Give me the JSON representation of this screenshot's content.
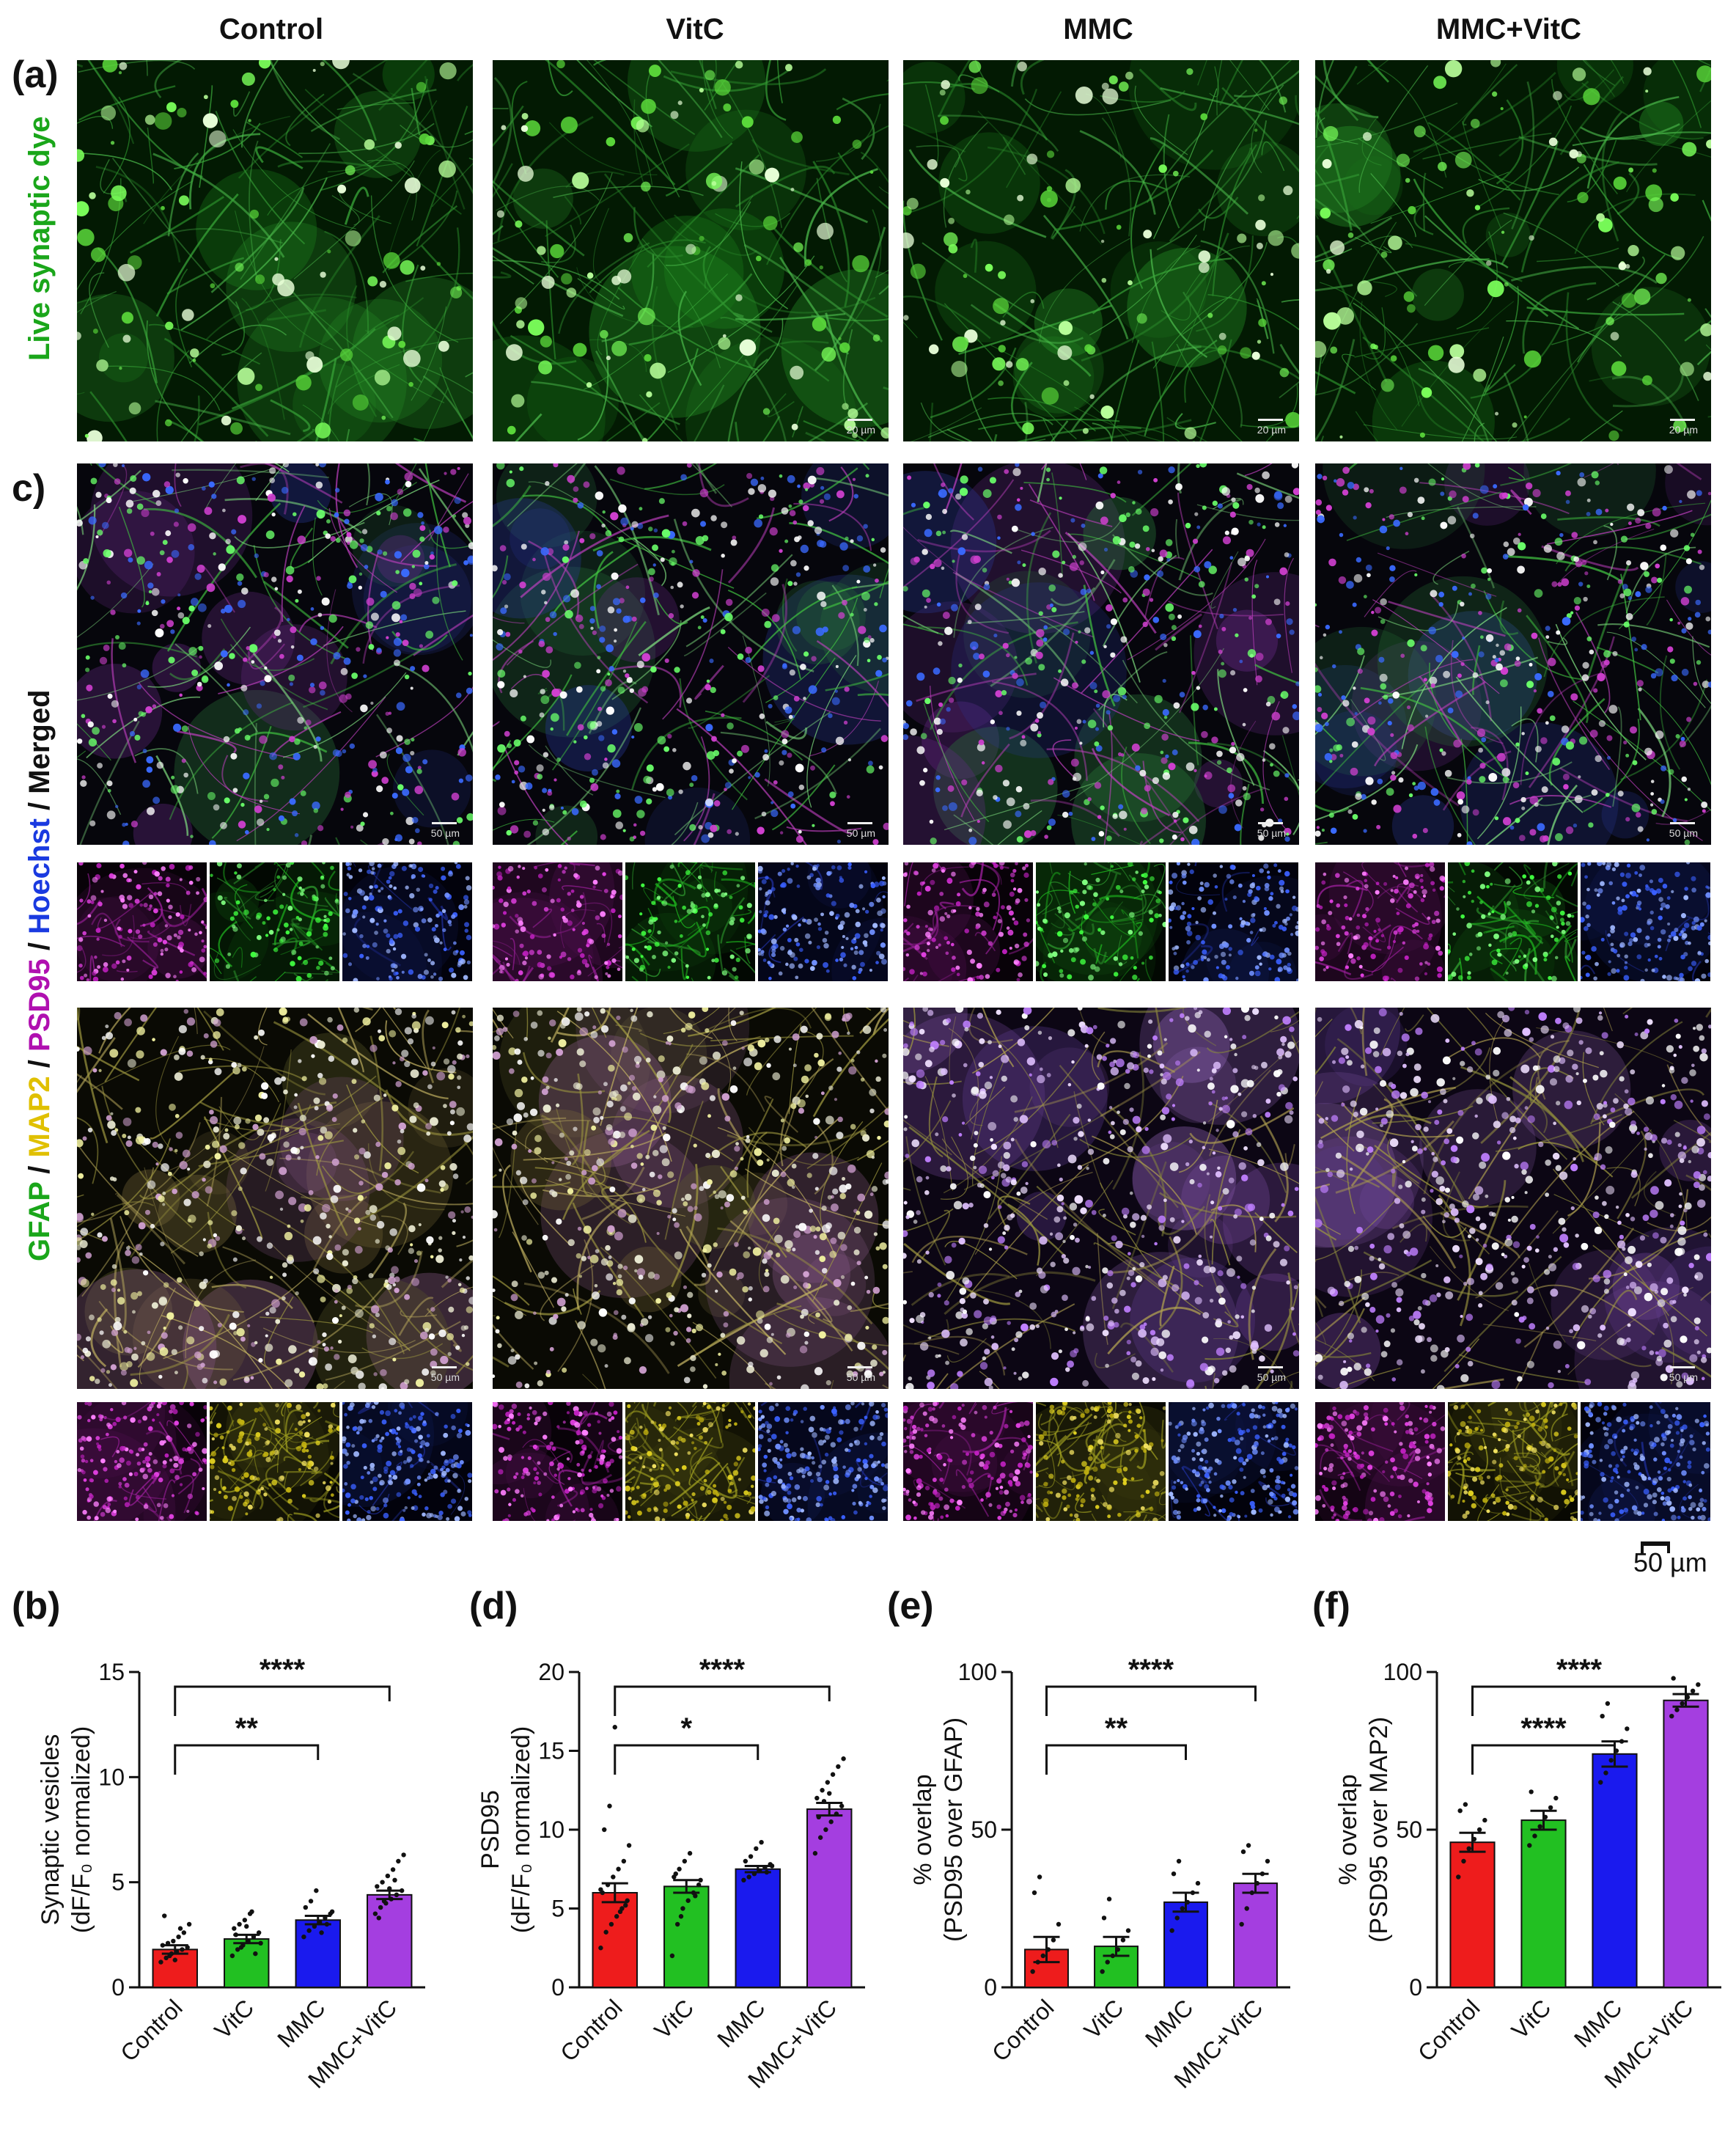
{
  "columns": [
    "Control",
    "VitC",
    "MMC",
    "MMC+VitC"
  ],
  "panel_labels": {
    "a": "(a)",
    "c": "c)",
    "b": "(b)",
    "d": "(d)",
    "e": "(e)",
    "f": "(f)"
  },
  "row_labels": {
    "live": "Live synaptic dye",
    "merged": [
      {
        "text": "GFAP",
        "color": "#1aa61a"
      },
      {
        "text": " / ",
        "color": "#111111"
      },
      {
        "text": "MAP2",
        "color": "#e0c000"
      },
      {
        "text": " / ",
        "color": "#111111"
      },
      {
        "text": "PSD95",
        "color": "#b010b0"
      },
      {
        "text": " / ",
        "color": "#111111"
      },
      {
        "text": "Hoechst",
        "color": "#1a3ae0"
      },
      {
        "text": " / ",
        "color": "#111111"
      },
      {
        "text": "Merged",
        "color": "#111111"
      }
    ]
  },
  "scale_labels": {
    "live": "20 µm",
    "merged": "50 µm",
    "global": "50 µm"
  },
  "colors": {
    "Control": "#ee1c1c",
    "VitC": "#22c022",
    "MMC": "#1a1aee",
    "MMC+VitC": "#a43ee0"
  },
  "chart_data": [
    {
      "id": "b",
      "type": "bar",
      "categories": [
        "Control",
        "VitC",
        "MMC",
        "MMC+VitC"
      ],
      "values": [
        1.8,
        2.3,
        3.2,
        4.4
      ],
      "errors": [
        0.2,
        0.2,
        0.2,
        0.2
      ],
      "ylabel": [
        "Synaptic vesicles",
        "(dF/F₀ normalized)"
      ],
      "ylim": [
        0,
        15
      ],
      "yticks": [
        0,
        5,
        10,
        15
      ],
      "significance": [
        {
          "from": 0,
          "to": 2,
          "label": "**"
        },
        {
          "from": 0,
          "to": 3,
          "label": "****"
        }
      ],
      "points": [
        [
          1.2,
          1.4,
          1.6,
          1.7,
          1.8,
          1.9,
          2.0,
          2.1,
          2.2,
          2.4,
          2.6,
          3.0,
          3.4,
          1.5,
          1.3,
          2.8
        ],
        [
          1.5,
          1.8,
          2.0,
          2.2,
          2.4,
          2.6,
          2.8,
          3.0,
          3.2,
          3.5,
          1.6,
          2.1,
          2.5,
          1.9,
          2.9,
          3.6
        ],
        [
          2.4,
          2.7,
          2.9,
          3.1,
          3.3,
          3.5,
          3.8,
          4.1,
          4.6,
          2.6,
          3.0,
          3.6
        ],
        [
          3.5,
          3.8,
          4.0,
          4.2,
          4.4,
          4.6,
          4.8,
          5.0,
          5.3,
          5.6,
          6.0,
          6.3,
          3.3,
          4.1,
          4.7,
          5.1
        ]
      ]
    },
    {
      "id": "d",
      "type": "bar",
      "categories": [
        "Control",
        "VitC",
        "MMC",
        "MMC+VitC"
      ],
      "values": [
        6.0,
        6.4,
        7.5,
        11.3
      ],
      "errors": [
        0.6,
        0.4,
        0.2,
        0.4
      ],
      "ylabel": [
        "PSD95",
        "(dF/F₀ normalized)"
      ],
      "ylim": [
        0,
        20
      ],
      "yticks": [
        0,
        5,
        10,
        15,
        20
      ],
      "significance": [
        {
          "from": 0,
          "to": 2,
          "label": "*"
        },
        {
          "from": 0,
          "to": 3,
          "label": "****"
        }
      ],
      "points": [
        [
          2.5,
          3.5,
          4.0,
          4.5,
          5.0,
          5.5,
          6.0,
          6.5,
          7.0,
          7.5,
          8.0,
          9.0,
          10.0,
          11.5,
          16.5,
          4.8,
          5.2,
          6.2
        ],
        [
          2.0,
          4.0,
          5.0,
          5.5,
          6.0,
          6.5,
          7.0,
          7.5,
          8.0,
          8.5,
          5.8,
          6.8,
          7.2,
          4.5
        ],
        [
          6.8,
          7.0,
          7.2,
          7.4,
          7.6,
          7.8,
          8.0,
          8.3,
          8.8,
          9.2,
          7.3,
          7.7
        ],
        [
          8.5,
          9.5,
          10.0,
          10.5,
          11.0,
          11.5,
          12.0,
          12.5,
          13.0,
          13.5,
          14.0,
          14.5,
          10.8,
          11.8,
          12.3
        ]
      ]
    },
    {
      "id": "e",
      "type": "bar",
      "categories": [
        "Control",
        "VitC",
        "MMC",
        "MMC+VitC"
      ],
      "values": [
        12,
        13,
        27,
        33
      ],
      "errors": [
        4,
        3,
        3,
        3
      ],
      "ylabel": [
        "% overlap",
        "(PSD95 over GFAP)"
      ],
      "ylim": [
        0,
        100
      ],
      "yticks": [
        0,
        50,
        100
      ],
      "significance": [
        {
          "from": 0,
          "to": 2,
          "label": "**"
        },
        {
          "from": 0,
          "to": 3,
          "label": "****"
        }
      ],
      "points": [
        [
          5,
          8,
          10,
          12,
          15,
          20,
          30,
          35
        ],
        [
          5,
          8,
          10,
          12,
          15,
          18,
          22,
          28
        ],
        [
          18,
          22,
          25,
          27,
          30,
          33,
          36,
          40
        ],
        [
          20,
          25,
          30,
          33,
          36,
          40,
          43,
          45
        ]
      ]
    },
    {
      "id": "f",
      "type": "bar",
      "categories": [
        "Control",
        "VitC",
        "MMC",
        "MMC+VitC"
      ],
      "values": [
        46,
        53,
        74,
        91
      ],
      "errors": [
        3,
        3,
        4,
        2
      ],
      "ylabel": [
        "% overlap",
        "(PSD95 over MAP2)"
      ],
      "ylim": [
        0,
        100
      ],
      "yticks": [
        0,
        50,
        100
      ],
      "significance": [
        {
          "from": 0,
          "to": 2,
          "label": "****"
        },
        {
          "from": 0,
          "to": 3,
          "label": "****"
        }
      ],
      "points": [
        [
          35,
          40,
          44,
          47,
          50,
          53,
          56,
          58
        ],
        [
          45,
          48,
          51,
          54,
          57,
          60,
          62
        ],
        [
          65,
          68,
          72,
          75,
          78,
          82,
          86,
          90
        ],
        [
          86,
          88,
          90,
          92,
          94,
          96,
          98
        ]
      ]
    }
  ]
}
